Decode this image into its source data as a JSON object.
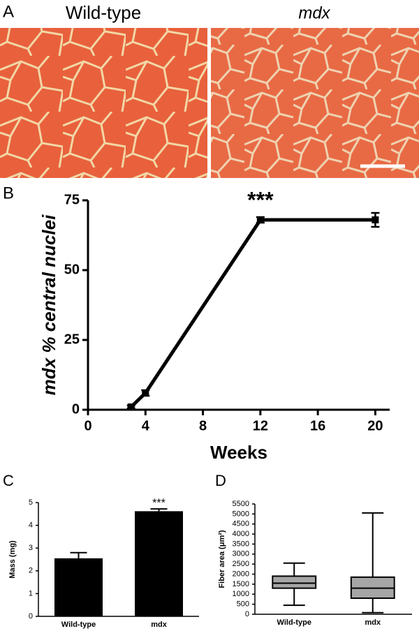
{
  "figure": {
    "panel_labels": [
      "A",
      "B",
      "C",
      "D"
    ],
    "image_titles": [
      "Wild-type",
      "mdx"
    ]
  },
  "chart_data": [
    {
      "type": "line",
      "x": [
        3,
        4,
        12,
        20
      ],
      "values": [
        1,
        6,
        68,
        68
      ],
      "errors": [
        0.5,
        1,
        1,
        2.5
      ],
      "color": "#000000",
      "xlabel": "Weeks",
      "ylabel": "mdx % central nuclei",
      "xlim": [
        0,
        21
      ],
      "xticks": [
        0,
        4,
        8,
        12,
        16,
        20
      ],
      "ylim": [
        0,
        75
      ],
      "yticks": [
        0,
        25,
        50,
        75
      ],
      "annotations": [
        {
          "text": "***",
          "x": 12
        }
      ]
    },
    {
      "type": "bar",
      "categories": [
        "Wild-type",
        "mdx"
      ],
      "values": [
        2.55,
        4.62
      ],
      "errors": [
        0.25,
        0.1
      ],
      "color": "#000000",
      "ylabel": "Mass (mg)",
      "ylim": [
        0,
        5
      ],
      "yticks": [
        0,
        1,
        2,
        3,
        4,
        5
      ],
      "annotations": [
        {
          "text": "***",
          "category": "mdx"
        }
      ]
    },
    {
      "type": "box",
      "categories": [
        "Wild-type",
        "mdx"
      ],
      "color": "#a6a6a6",
      "min": [
        450,
        80
      ],
      "q1": [
        1300,
        800
      ],
      "median": [
        1550,
        1300
      ],
      "q3": [
        1900,
        1850
      ],
      "max": [
        2550,
        5050
      ],
      "ylabel": "Fiber area (μm²)",
      "ylim": [
        0,
        5500
      ],
      "yticks": [
        0,
        500,
        1000,
        1500,
        2000,
        2500,
        3000,
        3500,
        4000,
        4500,
        5000,
        5500
      ]
    }
  ]
}
